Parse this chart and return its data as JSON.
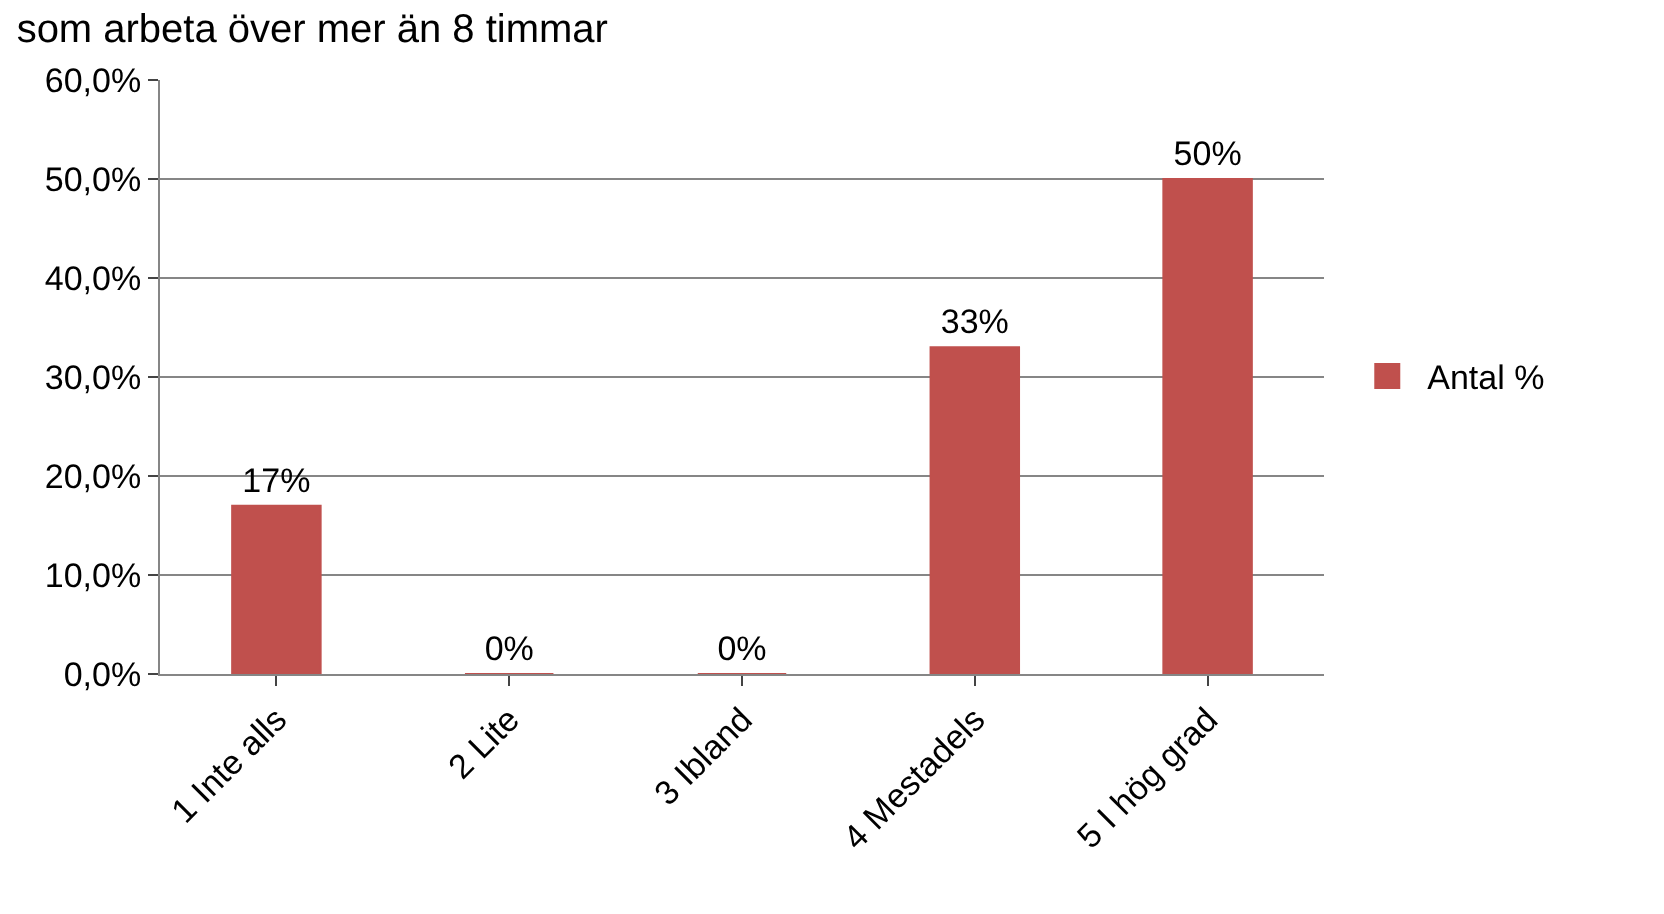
{
  "chart_data": {
    "type": "bar",
    "title": "som arbeta över mer än 8 timmar",
    "categories": [
      "1 Inte alls",
      "2 Lite",
      "3 Ibland",
      "4 Mestadels",
      "5 I hög grad"
    ],
    "series": [
      {
        "name": "Antal %",
        "color": "#c0504d",
        "values": [
          17,
          0,
          0,
          33,
          50
        ],
        "value_labels": [
          "17%",
          "0%",
          "0%",
          "33%",
          "50%"
        ]
      }
    ],
    "ylim": [
      0,
      60
    ],
    "yticks": [
      {
        "value": 0,
        "label": "0,0%"
      },
      {
        "value": 10,
        "label": "10,0%"
      },
      {
        "value": 20,
        "label": "20,0%"
      },
      {
        "value": 30,
        "label": "30,0%"
      },
      {
        "value": 40,
        "label": "40,0%"
      },
      {
        "value": 50,
        "label": "50,0%"
      },
      {
        "value": 60,
        "label": "60,0%"
      }
    ],
    "grid": "y",
    "legend": "right"
  }
}
